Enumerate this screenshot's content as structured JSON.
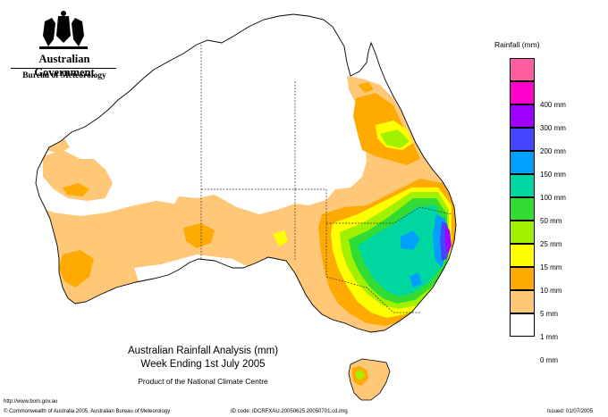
{
  "logo": {
    "government": "Australian Government",
    "bureau": "Bureau of Meteorology"
  },
  "legend": {
    "title": "Rainfall (mm)",
    "items": [
      {
        "label": "",
        "color": "#ff5fa0"
      },
      {
        "label": "400 mm",
        "color": "#ff00c8"
      },
      {
        "label": "300 mm",
        "color": "#a000ff"
      },
      {
        "label": "200 mm",
        "color": "#4646ff"
      },
      {
        "label": "150 mm",
        "color": "#00a0ff"
      },
      {
        "label": "100 mm",
        "color": "#00d7a0"
      },
      {
        "label": "50 mm",
        "color": "#32dc32"
      },
      {
        "label": "25 mm",
        "color": "#a0f000"
      },
      {
        "label": "15 mm",
        "color": "#ffff00"
      },
      {
        "label": "10 mm",
        "color": "#ffaa00"
      },
      {
        "label": "5 mm",
        "color": "#ffc878"
      },
      {
        "label": "1 mm",
        "color": "#ffffff"
      },
      {
        "label": "0 mm",
        "color": ""
      }
    ]
  },
  "caption": {
    "line1": "Australian Rainfall Analysis (mm)",
    "line2": "Week Ending 1st July 2005",
    "line3": "Product of the National Climate Centre"
  },
  "footer": {
    "url": "http://www.bom.gov.au",
    "copyright": "© Commonwealth of Australia 2005, Australian Bureau of Meteorology",
    "id_code": "ID code: IDCRFXAU.20050625.20050701.cd.img",
    "issued": "Issued: 01/07/2005"
  }
}
